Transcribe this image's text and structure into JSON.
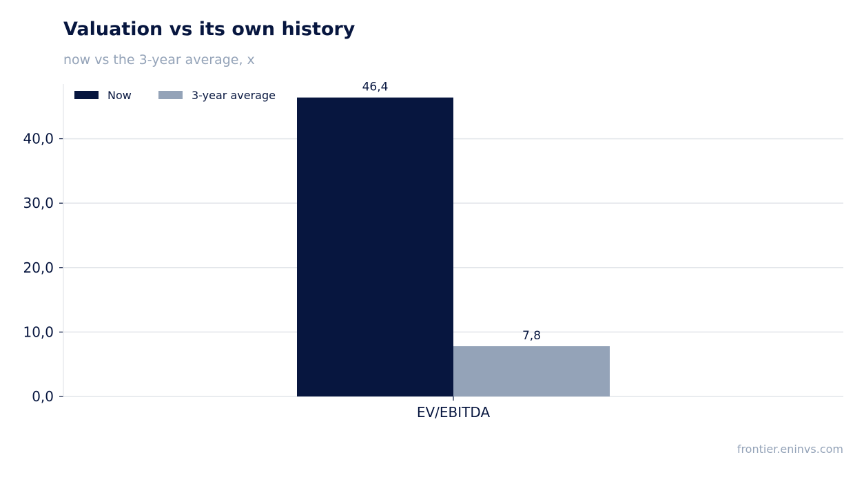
{
  "title": "Valuation vs its own history",
  "subtitle": "now vs the 3-year average, x",
  "source": "frontier.eninvs.com",
  "colors": {
    "now": "#07163f",
    "average": "#94a3b8",
    "grid": "#e2e5ea",
    "axis": "#07163f"
  },
  "chart_data": {
    "type": "bar",
    "title": "Valuation vs its own history",
    "subtitle": "now vs the 3-year average, x",
    "xlabel": "",
    "ylabel": "",
    "categories": [
      "EV/EBITDA"
    ],
    "series": [
      {
        "name": "Now",
        "values": [
          46.4
        ],
        "value_labels": [
          "46,4"
        ]
      },
      {
        "name": "3-year average",
        "values": [
          7.8
        ],
        "value_labels": [
          "7,8"
        ]
      }
    ],
    "ylim": [
      0,
      48.5
    ],
    "yticks": [
      0,
      10,
      20,
      30,
      40
    ],
    "ytick_labels": [
      "0,0",
      "10,0",
      "20,0",
      "30,0",
      "40,0"
    ],
    "grid": true,
    "legend_position": "top-left"
  }
}
